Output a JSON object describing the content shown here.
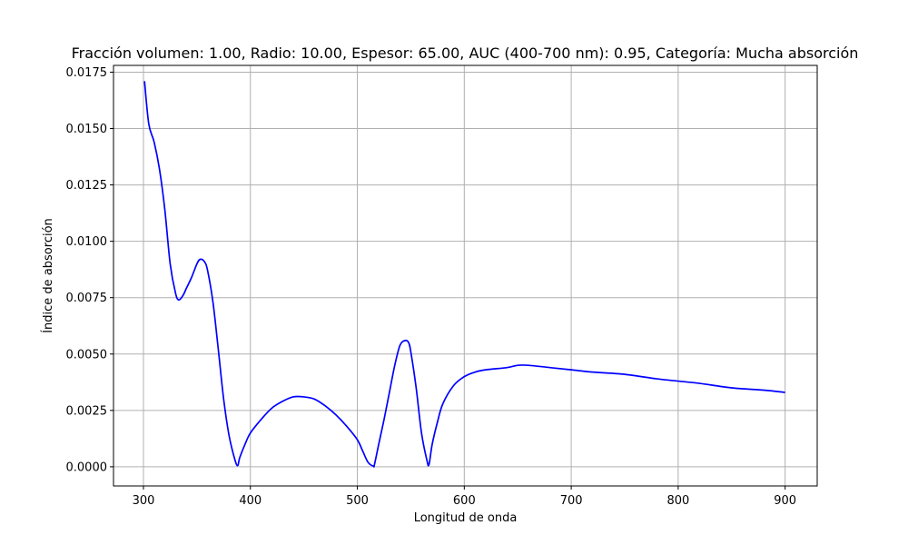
{
  "chart_data": {
    "type": "line",
    "title": "Fracción volumen: 1.00, Radio: 10.00, Espesor: 65.00, AUC (400-700 nm): 0.95, Categoría: Mucha absorción",
    "xlabel": "Longitud de onda",
    "ylabel": "Índice de absorción",
    "xlim": [
      272,
      930
    ],
    "ylim": [
      -0.00085,
      0.0178
    ],
    "xticks": [
      300,
      400,
      500,
      600,
      700,
      800,
      900
    ],
    "xtick_labels": [
      "300",
      "400",
      "500",
      "600",
      "700",
      "800",
      "900"
    ],
    "yticks": [
      0,
      0.0025,
      0.005,
      0.0075,
      0.01,
      0.0125,
      0.015,
      0.0175
    ],
    "ytick_labels": [
      "0.0000",
      "0.0025",
      "0.0050",
      "0.0075",
      "0.0100",
      "0.0125",
      "0.0150",
      "0.0175"
    ],
    "grid": true,
    "series": [
      {
        "color": "#0000ff",
        "x": [
          301,
          305,
          310,
          315,
          320,
          325,
          330,
          333,
          337,
          340,
          345,
          350,
          353,
          357,
          360,
          365,
          370,
          375,
          380,
          385,
          388,
          390,
          395,
          400,
          410,
          420,
          430,
          440,
          450,
          460,
          470,
          480,
          490,
          500,
          505,
          510,
          515,
          516,
          520,
          525,
          530,
          535,
          540,
          545,
          548,
          550,
          555,
          560,
          565,
          567,
          570,
          575,
          580,
          590,
          600,
          610,
          620,
          640,
          650,
          660,
          680,
          700,
          720,
          750,
          780,
          800,
          820,
          850,
          880,
          900
        ],
        "y": [
          0.0171,
          0.0152,
          0.0144,
          0.0132,
          0.0114,
          0.009,
          0.0077,
          0.0074,
          0.0076,
          0.0079,
          0.0084,
          0.009,
          0.0092,
          0.0091,
          0.0087,
          0.0073,
          0.0052,
          0.003,
          0.0014,
          0.0004,
          5e-05,
          0.0004,
          0.001,
          0.0015,
          0.0021,
          0.0026,
          0.0029,
          0.0031,
          0.0031,
          0.003,
          0.0027,
          0.0023,
          0.0018,
          0.0012,
          0.0007,
          0.0002,
          3e-05,
          0.0001,
          0.001,
          0.0021,
          0.0033,
          0.0045,
          0.0054,
          0.0056,
          0.0055,
          0.0051,
          0.0035,
          0.0015,
          0.0003,
          0.0001,
          0.001,
          0.002,
          0.0028,
          0.0036,
          0.004,
          0.0042,
          0.0043,
          0.0044,
          0.0045,
          0.0045,
          0.0044,
          0.0043,
          0.0042,
          0.0041,
          0.0039,
          0.0038,
          0.0037,
          0.0035,
          0.0034,
          0.0033
        ]
      }
    ]
  }
}
